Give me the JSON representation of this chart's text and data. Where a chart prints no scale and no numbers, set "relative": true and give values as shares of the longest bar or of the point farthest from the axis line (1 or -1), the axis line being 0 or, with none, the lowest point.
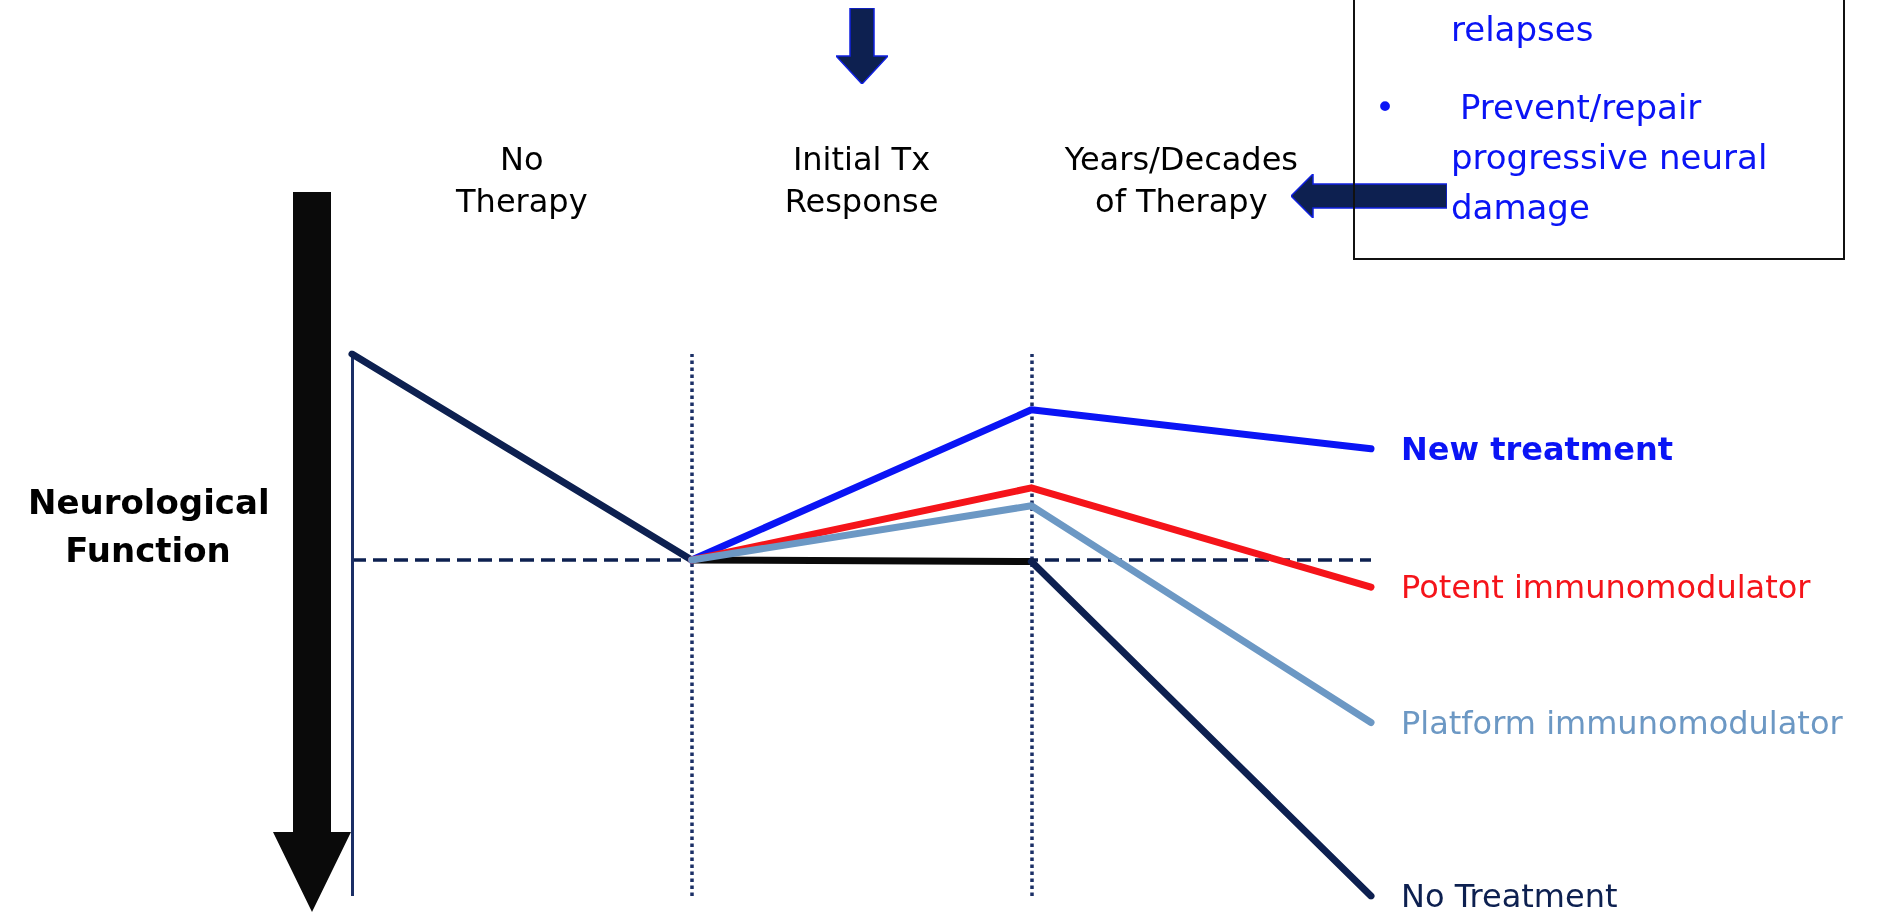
{
  "chart_data": {
    "type": "line",
    "relative": true,
    "ylabel": "Neurological Function",
    "categories": [
      null,
      null,
      null,
      null
    ],
    "series": [
      {
        "color": "#0d2050",
        "values": [
          1,
          0.62,
          null,
          null
        ]
      },
      {
        "color": "#0a0a0a",
        "values": [
          null,
          0.62,
          0.617,
          null
        ]
      },
      {
        "name": "New treatment",
        "color": "#0a14f5",
        "values": [
          null,
          0.62,
          0.897,
          0.825
        ]
      },
      {
        "name": "Potent immunomodulator",
        "color": "#f5141a",
        "values": [
          null,
          0.62,
          0.753,
          0.57
        ]
      },
      {
        "name": "Platform immunomodulator",
        "color": "#6c98c4",
        "values": [
          null,
          0.62,
          0.72,
          0.32
        ]
      },
      {
        "name": "No Treatment",
        "color": "#0d2050",
        "values": [
          null,
          null,
          0.617,
          0
        ]
      }
    ],
    "ref_lines": [
      {
        "axis": "y",
        "value": 0.62,
        "color": "#0d2050",
        "line_style": "dashed"
      }
    ],
    "annotations": [
      "No Therapy",
      "Initial Tx Response",
      "Years/Decades of Therapy",
      "relapses",
      "•      Prevent/repair progressive neural damage"
    ],
    "legend": false,
    "marker": "none",
    "line_style": "solid"
  }
}
